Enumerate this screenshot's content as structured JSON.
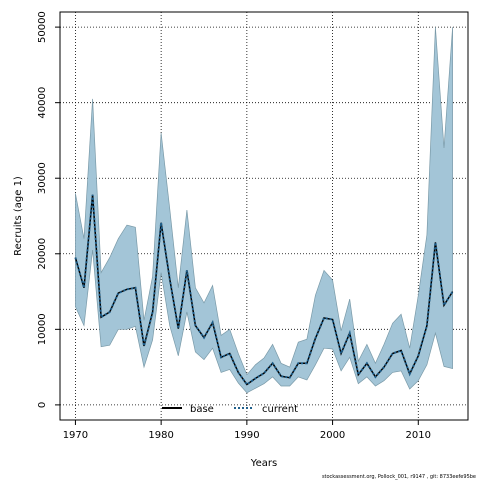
{
  "chart_data": {
    "type": "line",
    "title": "",
    "xlabel": "Years",
    "ylabel": "Recruits (age 1)",
    "xlim": [
      1968.2,
      2015.8
    ],
    "ylim": [
      -2000,
      52000
    ],
    "xticks": [
      1970,
      1980,
      1990,
      2000,
      2010
    ],
    "yticks": [
      0,
      10000,
      20000,
      30000,
      40000,
      50000
    ],
    "grid": true,
    "legend_position": "bottom-center",
    "x": [
      1970,
      1971,
      1972,
      1973,
      1974,
      1975,
      1976,
      1977,
      1978,
      1979,
      1980,
      1981,
      1982,
      1983,
      1984,
      1985,
      1986,
      1987,
      1988,
      1989,
      1990,
      1991,
      1992,
      1993,
      1994,
      1995,
      1996,
      1997,
      1998,
      1999,
      2000,
      2001,
      2002,
      2003,
      2004,
      2005,
      2006,
      2007,
      2008,
      2009,
      2010,
      2011,
      2012,
      2013,
      2014
    ],
    "band": {
      "upper": [
        28000,
        22000,
        40500,
        17500,
        19500,
        22000,
        23800,
        23500,
        11200,
        17000,
        36000,
        26000,
        15500,
        25800,
        15500,
        13500,
        15800,
        9200,
        10000,
        6800,
        4000,
        5300,
        6200,
        8000,
        5500,
        5000,
        8300,
        8700,
        14500,
        17800,
        16500,
        9800,
        14000,
        5800,
        8000,
        5500,
        8000,
        10800,
        12000,
        7500,
        14500,
        22500,
        50000,
        34000,
        50000
      ],
      "lower": [
        13000,
        10500,
        20500,
        7700,
        7900,
        10000,
        10000,
        10400,
        5000,
        8600,
        17500,
        10500,
        6500,
        12300,
        7000,
        6000,
        7500,
        4300,
        4700,
        2900,
        1600,
        2200,
        2800,
        3700,
        2500,
        2500,
        3700,
        3300,
        5300,
        7500,
        7400,
        4500,
        6300,
        2800,
        3700,
        2500,
        3200,
        4300,
        4500,
        2100,
        3200,
        5300,
        9500,
        5100,
        4800
      ]
    },
    "series": [
      {
        "name": "base",
        "color": "#000000",
        "style": "solid",
        "values": [
          19500,
          15500,
          27800,
          11600,
          12300,
          14800,
          15300,
          15500,
          7800,
          12300,
          24100,
          16700,
          10100,
          17800,
          10500,
          8900,
          10900,
          6300,
          6800,
          4300,
          2700,
          3500,
          4200,
          5500,
          3800,
          3600,
          5500,
          5500,
          8800,
          11500,
          11300,
          6800,
          9500,
          4000,
          5500,
          3700,
          5000,
          6800,
          7200,
          4100,
          6500,
          10500,
          21500,
          13200,
          15000
        ]
      },
      {
        "name": "current",
        "color": "#1f5f8b",
        "style": "dotted",
        "values": [
          19500,
          15500,
          27800,
          11600,
          12300,
          14800,
          15300,
          15500,
          7800,
          12300,
          24100,
          16700,
          10100,
          17800,
          10500,
          8900,
          10900,
          6300,
          6800,
          4300,
          2700,
          3500,
          4200,
          5500,
          3800,
          3600,
          5500,
          5500,
          8800,
          11500,
          11300,
          6800,
          9500,
          4000,
          5500,
          3700,
          5000,
          6800,
          7200,
          4100,
          6500,
          10500,
          21500,
          13200,
          15000
        ]
      }
    ],
    "band_color": "#a3c5d7",
    "band_edge_color": "#7a9aa8",
    "footnote": "stockassessment.org, Pollock_001, r9147 , git: 8733eefe95be"
  }
}
